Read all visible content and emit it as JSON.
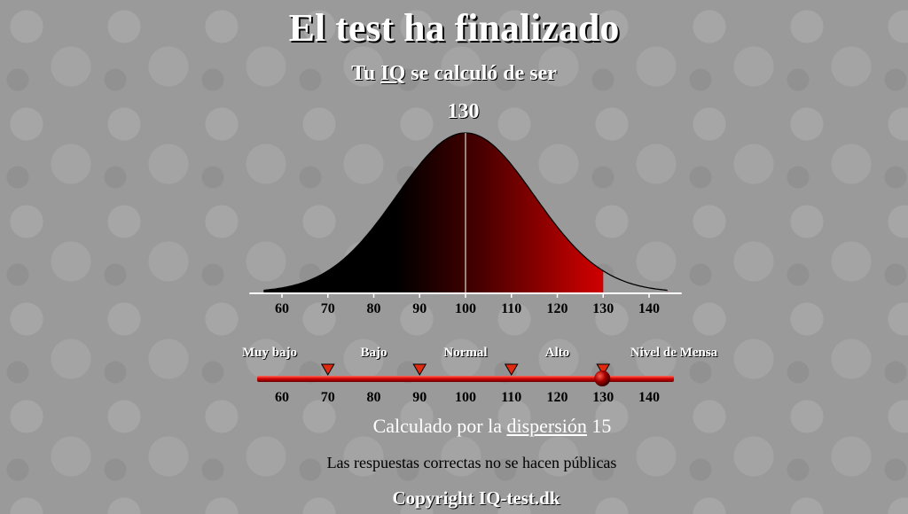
{
  "header": {
    "title": "El test ha finalizado",
    "subtitle_prefix": "Tu ",
    "subtitle_link": "IQ",
    "subtitle_suffix": " se calculó de ser",
    "score": "130"
  },
  "curve": {
    "mean": 100,
    "sd": 15,
    "score": 130,
    "x_ticks": [
      "60",
      "70",
      "80",
      "90",
      "100",
      "110",
      "120",
      "130",
      "140"
    ]
  },
  "scale": {
    "categories": [
      {
        "label": "Muy bajo",
        "center": 60
      },
      {
        "label": "Bajo",
        "center": 80
      },
      {
        "label": "Normal",
        "center": 100
      },
      {
        "label": "Alto",
        "center": 120
      },
      {
        "label": "Nivel de Mensa",
        "center": 140
      }
    ],
    "markers": [
      70,
      90,
      110,
      130
    ],
    "indicator_value": 130,
    "ticks": [
      "60",
      "70",
      "80",
      "90",
      "100",
      "110",
      "120",
      "130",
      "140"
    ],
    "colors": {
      "bar": "#cc0000",
      "marker": "#e02a10",
      "indicator": "#8b0000"
    }
  },
  "footer": {
    "dispersion_prefix": "Calculado por la ",
    "dispersion_link": "dispersión",
    "dispersion_suffix": " 15",
    "answers_note": "Las respuestas correctas no se hacen públicas",
    "copyright": "Copyright IQ-test.dk"
  }
}
